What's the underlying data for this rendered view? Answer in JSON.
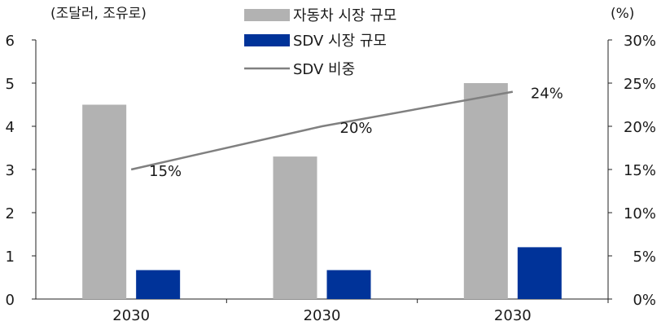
{
  "chart_data": {
    "type": "bar",
    "categories": [
      "2030",
      "2030",
      "2030"
    ],
    "y_left_unit_label": "(조달러, 조유로)",
    "y_right_unit_label": "(%)",
    "y_left_lim": [
      0,
      6
    ],
    "y_left_ticks": [
      "0",
      "1",
      "2",
      "3",
      "4",
      "5",
      "6"
    ],
    "y_right_lim": [
      0,
      30
    ],
    "y_right_ticks": [
      "0%",
      "5%",
      "10%",
      "15%",
      "20%",
      "25%",
      "30%"
    ],
    "grid": false,
    "legend_position": "top-center",
    "series": [
      {
        "name": "자동차 시장 규모",
        "type": "bar",
        "axis": "left",
        "color": "#b2b2b2",
        "values": [
          4.5,
          3.3,
          5.0
        ]
      },
      {
        "name": "SDV 시장 규모",
        "type": "bar",
        "axis": "left",
        "color": "#003399",
        "values": [
          0.67,
          0.67,
          1.2
        ]
      },
      {
        "name": "SDV 비중",
        "type": "line",
        "axis": "right",
        "color": "#808080",
        "values": [
          15,
          20,
          24
        ],
        "data_labels": [
          "15%",
          "20%",
          "24%"
        ]
      }
    ]
  }
}
